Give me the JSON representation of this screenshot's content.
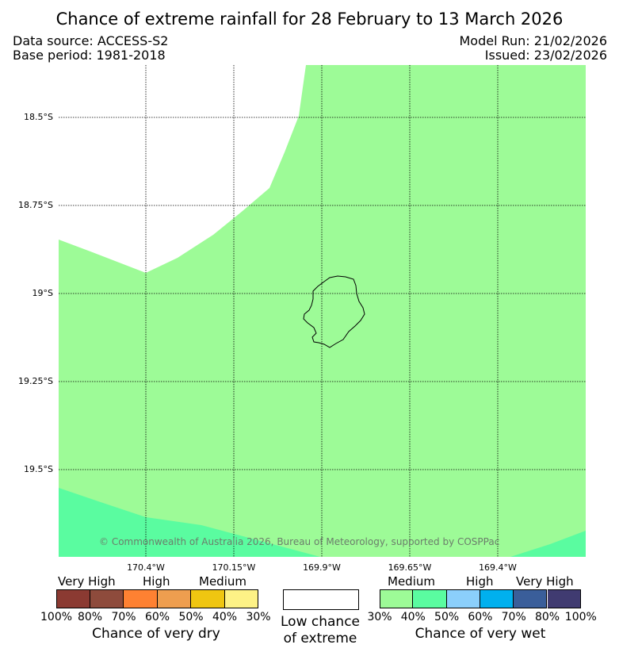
{
  "header": {
    "title": "Chance of extreme rainfall for 28 February to 13 March 2026",
    "data_source": "Data source: ACCESS-S2",
    "base_period": "Base period: 1981-2018",
    "model_run": "Model Run: 21/02/2026",
    "issued": "Issued: 23/02/2026"
  },
  "map": {
    "latitude_labels": [
      "18.5°S",
      "18.75°S",
      "19°S",
      "19.25°S",
      "19.5°S"
    ],
    "longitude_labels": [
      "170.4°W",
      "170.15°W",
      "169.9°W",
      "169.65°W",
      "169.4°W"
    ],
    "copyright": "© Commonwealth of Australia 2026, Bureau of Meteorology, supported by COSPPac",
    "colors": {
      "medium_wet": "#9dfb97",
      "medium_wet_40": "#5afca0",
      "grid": "#000000",
      "coastline": "#000000"
    }
  },
  "legend": {
    "dry": {
      "categories": [
        "Very High",
        "High",
        "Medium"
      ],
      "colors": [
        "#8b3a32",
        "#8e4b3c",
        "#fe8132",
        "#ee9e4f",
        "#efc611",
        "#fdf286"
      ],
      "ticks": [
        "100%",
        "80%",
        "70%",
        "60%",
        "50%",
        "40%",
        "30%"
      ],
      "title": "Chance of very dry"
    },
    "neutral": {
      "color": "#ffffff",
      "title_line1": "Low chance",
      "title_line2": "of extreme"
    },
    "wet": {
      "categories": [
        "Medium",
        "High",
        "Very High"
      ],
      "colors": [
        "#9dfb97",
        "#5afca0",
        "#8bcffb",
        "#00b0ee",
        "#3a5e9a",
        "#403b71"
      ],
      "ticks": [
        "30%",
        "40%",
        "50%",
        "60%",
        "70%",
        "80%",
        "100%"
      ],
      "title": "Chance of very wet"
    }
  }
}
